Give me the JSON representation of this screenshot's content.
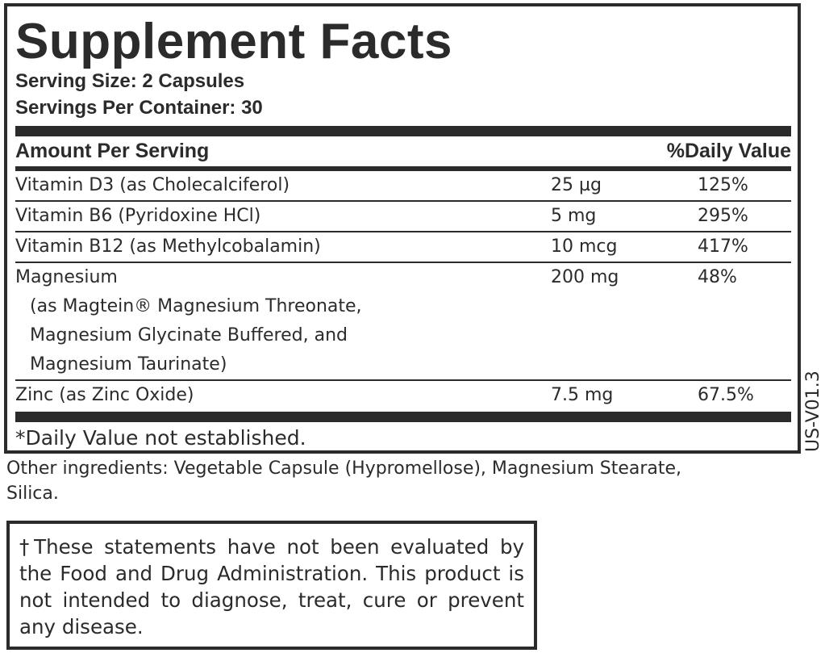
{
  "title": "Supplement Facts",
  "serving_size": "Serving Size: 2 Capsules",
  "servings_per_container": "Servings Per Container: 30",
  "header": {
    "amount": "Amount Per Serving",
    "dv": "%Daily Value"
  },
  "rows": [
    {
      "name": "Vitamin D3 (as Cholecalciferol)",
      "amount": "25 µg",
      "dv": "125%"
    },
    {
      "name": "Vitamin B6 (Pyridoxine HCl)",
      "amount": "5 mg",
      "dv": "295%"
    },
    {
      "name": "Vitamin B12 (as Methylcobalamin)",
      "amount": "10 mcg",
      "dv": "417%"
    },
    {
      "name": "Magnesium",
      "sub": [
        "(as Magtein® Magnesium Threonate,",
        "Magnesium Glycinate Buffered, and",
        "Magnesium Taurinate)"
      ],
      "amount": "200 mg",
      "dv": "48%"
    },
    {
      "name": "Zinc (as Zinc Oxide)",
      "amount": "7.5 mg",
      "dv": "67.5%"
    }
  ],
  "footnote": "*Daily Value not established.",
  "version_code": "US-V01.3",
  "other_ingredients": "Other ingredients: Vegetable Capsule (Hypromellose), Magnesium Stearate, Silica.",
  "disclaimer": "†These statements have not been evaluated by the Food and Drug Administration. This product is not intended to diagnose, treat, cure or prevent any disease."
}
